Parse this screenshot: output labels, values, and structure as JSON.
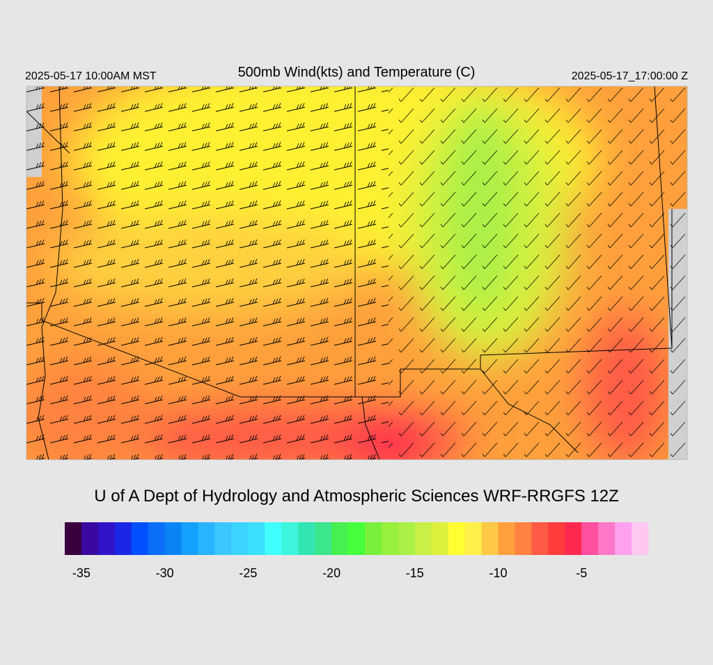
{
  "header": {
    "title": "500mb Wind(kts) and Temperature (C)",
    "local_time": "2025-05-17 10:00AM MST",
    "utc_time": "2025-05-17_17:00:00 Z"
  },
  "credit": "U of A Dept of Hydrology and Atmospheric Sciences WRF-RRGFS 12Z",
  "colorbar": {
    "range": [
      -36,
      -1
    ],
    "ticks": [
      -35,
      -30,
      -25,
      -20,
      -15,
      -10,
      -5
    ],
    "colors": [
      "#3a0040",
      "#3a0aa0",
      "#3214c8",
      "#1a28e6",
      "#0050ff",
      "#0a6ef8",
      "#0a84f5",
      "#14a0ff",
      "#28b4ff",
      "#3cc8ff",
      "#3cd4ff",
      "#3ce0ff",
      "#40ffff",
      "#3cf5dc",
      "#32e6b4",
      "#3ce68c",
      "#46f050",
      "#46ff3c",
      "#78f03c",
      "#96f03c",
      "#aaf046",
      "#c8f046",
      "#dcf03c",
      "#ffff32",
      "#fff04a",
      "#ffc846",
      "#ffa03c",
      "#ff8241",
      "#ff5a46",
      "#ff3c3c",
      "#ff2850",
      "#ff50a0",
      "#ff78c8",
      "#ffa0f0",
      "#ffc8f0"
    ]
  }
}
